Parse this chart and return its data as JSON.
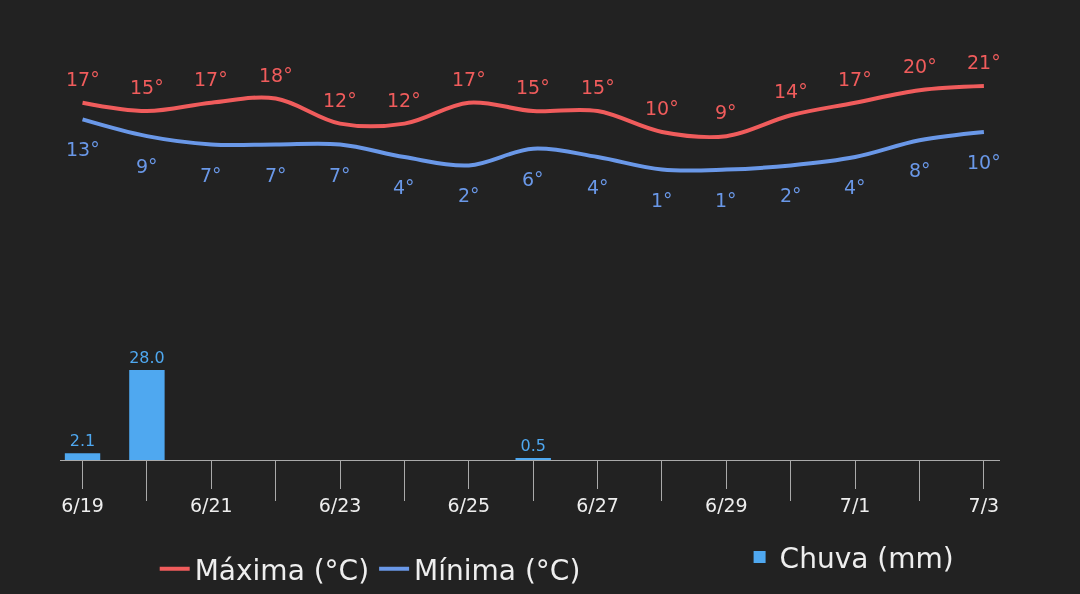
{
  "chart_data": [
    {
      "type": "line",
      "categories": [
        null,
        null,
        null,
        null,
        null,
        null,
        null,
        null,
        null,
        null,
        null,
        null,
        null,
        null,
        null
      ],
      "series": [
        {
          "name": "Máxima (°C)",
          "color": "#f05c5c",
          "values": [
            17,
            15,
            17,
            18,
            12,
            12,
            17,
            15,
            15,
            10,
            9,
            14,
            17,
            20,
            21
          ],
          "value_labels": [
            "17°",
            "15°",
            "17°",
            "18°",
            "12°",
            "12°",
            "17°",
            "15°",
            "15°",
            "10°",
            "9°",
            "14°",
            "17°",
            "20°",
            "21°"
          ]
        },
        {
          "name": "Mínima (°C)",
          "color": "#6a98e8",
          "values": [
            13,
            9,
            7,
            7,
            7,
            4,
            2,
            6,
            4,
            1,
            1,
            2,
            4,
            8,
            10
          ],
          "value_labels": [
            "13°",
            "9°",
            "7°",
            "7°",
            "7°",
            "4°",
            "2°",
            "6°",
            "4°",
            "1°",
            "1°",
            "2°",
            "4°",
            "8°",
            "10°"
          ]
        }
      ],
      "tick_labels": false,
      "legend": "bottom left",
      "grid": false,
      "marker": "none",
      "line_style": "solid"
    },
    {
      "type": "bar",
      "categories": [
        "6/19",
        null,
        "6/21",
        null,
        "6/23",
        null,
        "6/25",
        null,
        "6/27",
        null,
        "6/29",
        null,
        "7/1",
        null,
        "7/3"
      ],
      "series": [
        {
          "name": "Chuva (mm)",
          "color": "#4fa8f0",
          "values": [
            2.1,
            28.0,
            null,
            null,
            null,
            null,
            null,
            0.5,
            null,
            null,
            null,
            null,
            null,
            null,
            null
          ],
          "value_labels": [
            "2.1",
            "28.0",
            null,
            null,
            null,
            null,
            null,
            "0.5",
            null,
            null,
            null,
            null,
            null,
            null,
            null
          ]
        }
      ],
      "tick_labels": "x",
      "legend": "bottom right",
      "grid": false
    }
  ]
}
